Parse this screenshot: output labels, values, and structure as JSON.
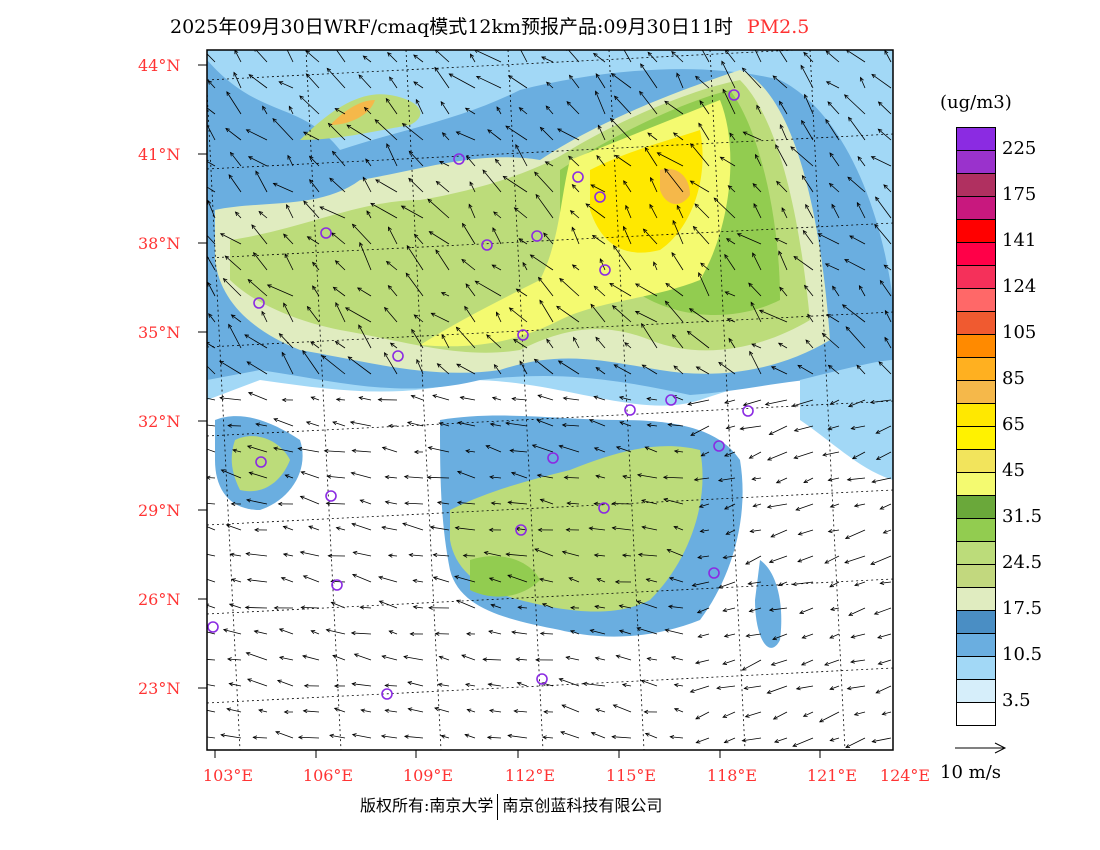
{
  "title": {
    "main": "2025年09月30日WRF/cmaq模式12km预报产品:09月30日11时",
    "variable": "PM2.5"
  },
  "latitude_labels": [
    "44°N",
    "41°N",
    "38°N",
    "35°N",
    "32°N",
    "29°N",
    "26°N",
    "23°N"
  ],
  "longitude_labels": [
    "103°E",
    "106°E",
    "109°E",
    "112°E",
    "115°E",
    "118°E",
    "121°E",
    "124°E"
  ],
  "colorbar": {
    "unit": "(ug/m3)",
    "colors": [
      "#8b2be2",
      "#9a32cc",
      "#b03060",
      "#c8187e",
      "#ff0000",
      "#ff0048",
      "#f5305a",
      "#ff6868",
      "#f05a30",
      "#ff8a00",
      "#ffb020",
      "#f5b84a",
      "#ffe800",
      "#fff200",
      "#f2e45c",
      "#f4fa70",
      "#6aa83a",
      "#92cc50",
      "#bcdc7a",
      "#c2d87e",
      "#e0ecc0",
      "#4a8ec4",
      "#6aaee0",
      "#a2d8f6",
      "#d6eefa",
      "#ffffff"
    ],
    "labels": [
      "225",
      "175",
      "141",
      "124",
      "105",
      "85",
      "65",
      "45",
      "31.5",
      "24.5",
      "17.5",
      "10.5",
      "3.5"
    ]
  },
  "wind_scale": {
    "label": "10 m/s"
  },
  "copyright": {
    "left": "版权所有:南京大学",
    "right": "南京创蓝科技有限公司"
  }
}
